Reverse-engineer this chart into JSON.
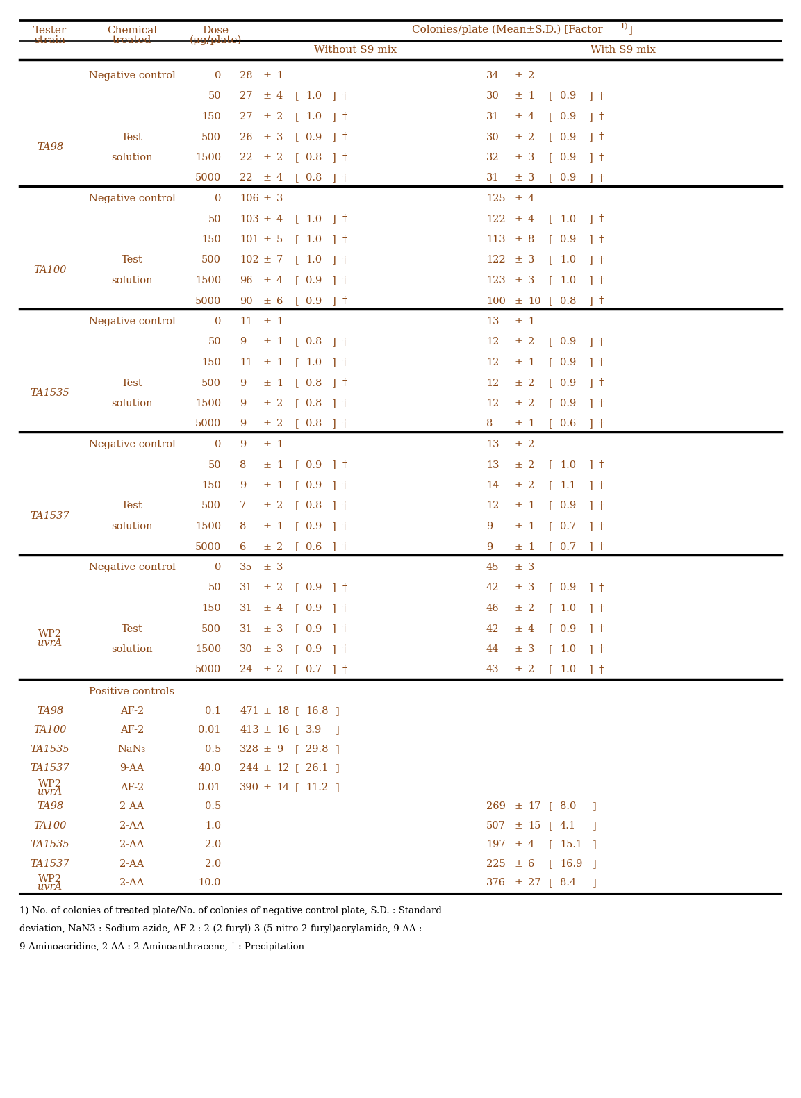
{
  "header_color": "#8B4513",
  "text_color": "#8B4513",
  "black": "#000000",
  "footnote_color": "#000000",
  "rows": [
    {
      "tester": "",
      "chemical": "Negative control",
      "dose": "0",
      "wo_mean": "28",
      "wo_sd": "1",
      "wo_factor": "",
      "wo_dagger": false,
      "w_mean": "34",
      "w_sd": "2",
      "w_factor": "",
      "w_dagger": false
    },
    {
      "tester": "",
      "chemical": "",
      "dose": "50",
      "wo_mean": "27",
      "wo_sd": "4",
      "wo_factor": "1.0",
      "wo_dagger": true,
      "w_mean": "30",
      "w_sd": "1",
      "w_factor": "0.9",
      "w_dagger": true
    },
    {
      "tester": "TA98",
      "chemical": "Test\nsolution",
      "dose": "150",
      "wo_mean": "27",
      "wo_sd": "2",
      "wo_factor": "1.0",
      "wo_dagger": true,
      "w_mean": "31",
      "w_sd": "4",
      "w_factor": "0.9",
      "w_dagger": true
    },
    {
      "tester": "",
      "chemical": "",
      "dose": "500",
      "wo_mean": "26",
      "wo_sd": "3",
      "wo_factor": "0.9",
      "wo_dagger": true,
      "w_mean": "30",
      "w_sd": "2",
      "w_factor": "0.9",
      "w_dagger": true
    },
    {
      "tester": "",
      "chemical": "",
      "dose": "1500",
      "wo_mean": "22",
      "wo_sd": "2",
      "wo_factor": "0.8",
      "wo_dagger": true,
      "w_mean": "32",
      "w_sd": "3",
      "w_factor": "0.9",
      "w_dagger": true
    },
    {
      "tester": "",
      "chemical": "",
      "dose": "5000",
      "wo_mean": "22",
      "wo_sd": "4",
      "wo_factor": "0.8",
      "wo_dagger": true,
      "w_mean": "31",
      "w_sd": "3",
      "w_factor": "0.9",
      "w_dagger": true
    },
    {
      "tester": "",
      "chemical": "Negative control",
      "dose": "0",
      "wo_mean": "106",
      "wo_sd": "3",
      "wo_factor": "",
      "wo_dagger": false,
      "w_mean": "125",
      "w_sd": "4",
      "w_factor": "",
      "w_dagger": false
    },
    {
      "tester": "",
      "chemical": "",
      "dose": "50",
      "wo_mean": "103",
      "wo_sd": "4",
      "wo_factor": "1.0",
      "wo_dagger": true,
      "w_mean": "122",
      "w_sd": "4",
      "w_factor": "1.0",
      "w_dagger": true
    },
    {
      "tester": "TA100",
      "chemical": "Test\nsolution",
      "dose": "150",
      "wo_mean": "101",
      "wo_sd": "5",
      "wo_factor": "1.0",
      "wo_dagger": true,
      "w_mean": "113",
      "w_sd": "8",
      "w_factor": "0.9",
      "w_dagger": true
    },
    {
      "tester": "",
      "chemical": "",
      "dose": "500",
      "wo_mean": "102",
      "wo_sd": "7",
      "wo_factor": "1.0",
      "wo_dagger": true,
      "w_mean": "122",
      "w_sd": "3",
      "w_factor": "1.0",
      "w_dagger": true
    },
    {
      "tester": "",
      "chemical": "",
      "dose": "1500",
      "wo_mean": "96",
      "wo_sd": "4",
      "wo_factor": "0.9",
      "wo_dagger": true,
      "w_mean": "123",
      "w_sd": "3",
      "w_factor": "1.0",
      "w_dagger": true
    },
    {
      "tester": "",
      "chemical": "",
      "dose": "5000",
      "wo_mean": "90",
      "wo_sd": "6",
      "wo_factor": "0.9",
      "wo_dagger": true,
      "w_mean": "100",
      "w_sd": "10",
      "w_factor": "0.8",
      "w_dagger": true
    },
    {
      "tester": "",
      "chemical": "Negative control",
      "dose": "0",
      "wo_mean": "11",
      "wo_sd": "1",
      "wo_factor": "",
      "wo_dagger": false,
      "w_mean": "13",
      "w_sd": "1",
      "w_factor": "",
      "w_dagger": false
    },
    {
      "tester": "",
      "chemical": "",
      "dose": "50",
      "wo_mean": "9",
      "wo_sd": "1",
      "wo_factor": "0.8",
      "wo_dagger": true,
      "w_mean": "12",
      "w_sd": "2",
      "w_factor": "0.9",
      "w_dagger": true
    },
    {
      "tester": "TA1535",
      "chemical": "Test\nsolution",
      "dose": "150",
      "wo_mean": "11",
      "wo_sd": "1",
      "wo_factor": "1.0",
      "wo_dagger": true,
      "w_mean": "12",
      "w_sd": "1",
      "w_factor": "0.9",
      "w_dagger": true
    },
    {
      "tester": "",
      "chemical": "",
      "dose": "500",
      "wo_mean": "9",
      "wo_sd": "1",
      "wo_factor": "0.8",
      "wo_dagger": true,
      "w_mean": "12",
      "w_sd": "2",
      "w_factor": "0.9",
      "w_dagger": true
    },
    {
      "tester": "",
      "chemical": "",
      "dose": "1500",
      "wo_mean": "9",
      "wo_sd": "2",
      "wo_factor": "0.8",
      "wo_dagger": true,
      "w_mean": "12",
      "w_sd": "2",
      "w_factor": "0.9",
      "w_dagger": true
    },
    {
      "tester": "",
      "chemical": "",
      "dose": "5000",
      "wo_mean": "9",
      "wo_sd": "2",
      "wo_factor": "0.8",
      "wo_dagger": true,
      "w_mean": "8",
      "w_sd": "1",
      "w_factor": "0.6",
      "w_dagger": true
    },
    {
      "tester": "",
      "chemical": "Negative control",
      "dose": "0",
      "wo_mean": "9",
      "wo_sd": "1",
      "wo_factor": "",
      "wo_dagger": false,
      "w_mean": "13",
      "w_sd": "2",
      "w_factor": "",
      "w_dagger": false
    },
    {
      "tester": "",
      "chemical": "",
      "dose": "50",
      "wo_mean": "8",
      "wo_sd": "1",
      "wo_factor": "0.9",
      "wo_dagger": true,
      "w_mean": "13",
      "w_sd": "2",
      "w_factor": "1.0",
      "w_dagger": true
    },
    {
      "tester": "TA1537",
      "chemical": "Test\nsolution",
      "dose": "150",
      "wo_mean": "9",
      "wo_sd": "1",
      "wo_factor": "0.9",
      "wo_dagger": true,
      "w_mean": "14",
      "w_sd": "2",
      "w_factor": "1.1",
      "w_dagger": true
    },
    {
      "tester": "",
      "chemical": "",
      "dose": "500",
      "wo_mean": "7",
      "wo_sd": "2",
      "wo_factor": "0.8",
      "wo_dagger": true,
      "w_mean": "12",
      "w_sd": "1",
      "w_factor": "0.9",
      "w_dagger": true
    },
    {
      "tester": "",
      "chemical": "",
      "dose": "1500",
      "wo_mean": "8",
      "wo_sd": "1",
      "wo_factor": "0.9",
      "wo_dagger": true,
      "w_mean": "9",
      "w_sd": "1",
      "w_factor": "0.7",
      "w_dagger": true
    },
    {
      "tester": "",
      "chemical": "",
      "dose": "5000",
      "wo_mean": "6",
      "wo_sd": "2",
      "wo_factor": "0.6",
      "wo_dagger": true,
      "w_mean": "9",
      "w_sd": "1",
      "w_factor": "0.7",
      "w_dagger": true
    },
    {
      "tester": "",
      "chemical": "Negative control",
      "dose": "0",
      "wo_mean": "35",
      "wo_sd": "3",
      "wo_factor": "",
      "wo_dagger": false,
      "w_mean": "45",
      "w_sd": "3",
      "w_factor": "",
      "w_dagger": false
    },
    {
      "tester": "",
      "chemical": "",
      "dose": "50",
      "wo_mean": "31",
      "wo_sd": "2",
      "wo_factor": "0.9",
      "wo_dagger": true,
      "w_mean": "42",
      "w_sd": "3",
      "w_factor": "0.9",
      "w_dagger": true
    },
    {
      "tester": "WP2uvrA",
      "chemical": "Test\nsolution",
      "dose": "150",
      "wo_mean": "31",
      "wo_sd": "4",
      "wo_factor": "0.9",
      "wo_dagger": true,
      "w_mean": "46",
      "w_sd": "2",
      "w_factor": "1.0",
      "w_dagger": true
    },
    {
      "tester": "",
      "chemical": "",
      "dose": "500",
      "wo_mean": "31",
      "wo_sd": "3",
      "wo_factor": "0.9",
      "wo_dagger": true,
      "w_mean": "42",
      "w_sd": "4",
      "w_factor": "0.9",
      "w_dagger": true
    },
    {
      "tester": "",
      "chemical": "",
      "dose": "1500",
      "wo_mean": "30",
      "wo_sd": "3",
      "wo_factor": "0.9",
      "wo_dagger": true,
      "w_mean": "44",
      "w_sd": "3",
      "w_factor": "1.0",
      "w_dagger": true
    },
    {
      "tester": "",
      "chemical": "",
      "dose": "5000",
      "wo_mean": "24",
      "wo_sd": "2",
      "wo_factor": "0.7",
      "wo_dagger": true,
      "w_mean": "43",
      "w_sd": "2",
      "w_factor": "1.0",
      "w_dagger": true
    }
  ],
  "tester_sections": [
    {
      "tester": "TA98",
      "mid_row": 3,
      "wp2": false
    },
    {
      "tester": "TA100",
      "mid_row": 9,
      "wp2": false
    },
    {
      "tester": "TA1535",
      "mid_row": 15,
      "wp2": false
    },
    {
      "tester": "TA1537",
      "mid_row": 21,
      "wp2": false
    },
    {
      "tester": "WP2uvrA",
      "mid_row": 27,
      "wp2": true
    }
  ],
  "section_break_rows": [
    6,
    12,
    18,
    24
  ],
  "neg_ctrl_rows": [
    0,
    6,
    12,
    18,
    24
  ],
  "positive_rows_wo": [
    {
      "tester": "TA98",
      "chemical": "AF-2",
      "dose": "0.1",
      "mean": "471",
      "sd": "18",
      "factor": "16.8"
    },
    {
      "tester": "TA100",
      "chemical": "AF-2",
      "dose": "0.01",
      "mean": "413",
      "sd": "16",
      "factor": "3.9"
    },
    {
      "tester": "TA1535",
      "chemical": "NaN₃",
      "dose": "0.5",
      "mean": "328",
      "sd": "9",
      "factor": "29.8"
    },
    {
      "tester": "TA1537",
      "chemical": "9-AA",
      "dose": "40.0",
      "mean": "244",
      "sd": "12",
      "factor": "26.1"
    },
    {
      "tester": "WP2uvrA",
      "chemical": "AF-2",
      "dose": "0.01",
      "mean": "390",
      "sd": "14",
      "factor": "11.2"
    }
  ],
  "positive_rows_w": [
    {
      "tester": "TA98",
      "chemical": "2-AA",
      "dose": "0.5",
      "mean": "269",
      "sd": "17",
      "factor": "8.0"
    },
    {
      "tester": "TA100",
      "chemical": "2-AA",
      "dose": "1.0",
      "mean": "507",
      "sd": "15",
      "factor": "4.1"
    },
    {
      "tester": "TA1535",
      "chemical": "2-AA",
      "dose": "2.0",
      "mean": "197",
      "sd": "4",
      "factor": "15.1"
    },
    {
      "tester": "TA1537",
      "chemical": "2-AA",
      "dose": "2.0",
      "mean": "225",
      "sd": "6",
      "factor": "16.9"
    },
    {
      "tester": "WP2uvrA",
      "chemical": "2-AA",
      "dose": "10.0",
      "mean": "376",
      "sd": "27",
      "factor": "8.4"
    }
  ],
  "footnote_lines": [
    "1) No. of colonies of treated plate/No. of colonies of negative control plate, S.D. : Standard",
    "deviation, NaN3 : Sodium azide, AF-2 : 2-(2-furyl)-3-(5-nitro-2-furyl)acrylamide, 9-AA :",
    "9-Aminoacridine, 2-AA : 2-Aminoanthracene, † : Precipitation"
  ]
}
